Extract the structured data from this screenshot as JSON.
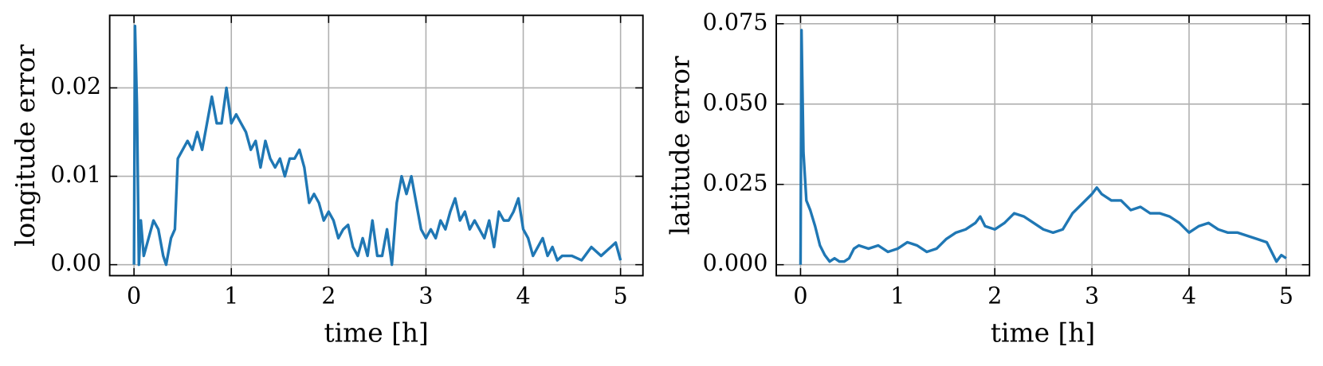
{
  "chart_data": [
    {
      "type": "line",
      "xlabel": "time [h]",
      "ylabel": "longitude error",
      "xlim": [
        -0.25,
        5.23
      ],
      "ylim": [
        -0.00124,
        0.0282
      ],
      "xticks": [
        0,
        1,
        2,
        3,
        4,
        5
      ],
      "yticks": [
        {
          "value": 0,
          "label": "0.00"
        },
        {
          "value": 0.01,
          "label": "0.01"
        },
        {
          "value": 0.02,
          "label": "0.02"
        }
      ],
      "grid": true,
      "x": [
        0,
        0.01,
        0.03,
        0.05,
        0.07,
        0.1,
        0.15,
        0.2,
        0.25,
        0.3,
        0.33,
        0.38,
        0.42,
        0.45,
        0.5,
        0.55,
        0.6,
        0.65,
        0.7,
        0.75,
        0.8,
        0.85,
        0.9,
        0.95,
        1.0,
        1.05,
        1.1,
        1.15,
        1.2,
        1.25,
        1.3,
        1.35,
        1.4,
        1.45,
        1.5,
        1.55,
        1.6,
        1.65,
        1.7,
        1.75,
        1.8,
        1.85,
        1.9,
        1.95,
        2.0,
        2.05,
        2.1,
        2.15,
        2.2,
        2.25,
        2.3,
        2.35,
        2.4,
        2.45,
        2.5,
        2.55,
        2.6,
        2.65,
        2.7,
        2.75,
        2.8,
        2.85,
        2.9,
        2.95,
        3.0,
        3.05,
        3.1,
        3.15,
        3.2,
        3.25,
        3.3,
        3.35,
        3.4,
        3.45,
        3.5,
        3.55,
        3.6,
        3.65,
        3.7,
        3.75,
        3.8,
        3.85,
        3.9,
        3.95,
        4.0,
        4.05,
        4.1,
        4.15,
        4.2,
        4.25,
        4.3,
        4.35,
        4.4,
        4.5,
        4.6,
        4.7,
        4.8,
        4.9,
        4.95,
        5.0
      ],
      "series": [
        {
          "color": "#1f77b4",
          "values": [
            0,
            0.027,
            0.018,
            0.0,
            0.005,
            0.001,
            0.003,
            0.005,
            0.004,
            0.001,
            0.0,
            0.003,
            0.004,
            0.012,
            0.013,
            0.014,
            0.013,
            0.015,
            0.013,
            0.016,
            0.019,
            0.016,
            0.016,
            0.02,
            0.016,
            0.017,
            0.016,
            0.015,
            0.013,
            0.014,
            0.011,
            0.014,
            0.012,
            0.011,
            0.012,
            0.01,
            0.012,
            0.012,
            0.013,
            0.011,
            0.007,
            0.008,
            0.007,
            0.005,
            0.006,
            0.005,
            0.003,
            0.004,
            0.0045,
            0.002,
            0.001,
            0.003,
            0.001,
            0.005,
            0.001,
            0.001,
            0.004,
            0.0,
            0.007,
            0.01,
            0.008,
            0.01,
            0.007,
            0.004,
            0.003,
            0.004,
            0.003,
            0.005,
            0.004,
            0.006,
            0.0075,
            0.005,
            0.006,
            0.004,
            0.005,
            0.004,
            0.003,
            0.005,
            0.002,
            0.006,
            0.005,
            0.005,
            0.006,
            0.0075,
            0.004,
            0.003,
            0.001,
            0.002,
            0.003,
            0.001,
            0.002,
            0.0005,
            0.001,
            0.001,
            0.0005,
            0.002,
            0.001,
            0.002,
            0.0025,
            0.0005
          ]
        }
      ]
    },
    {
      "type": "line",
      "xlabel": "time [h]",
      "ylabel": "latitude error",
      "xlim": [
        -0.25,
        5.24
      ],
      "ylim": [
        -0.0034,
        0.0776
      ],
      "xticks": [
        0,
        1,
        2,
        3,
        4,
        5
      ],
      "yticks": [
        {
          "value": 0,
          "label": "0.000"
        },
        {
          "value": 0.025,
          "label": "0.025"
        },
        {
          "value": 0.05,
          "label": "0.050"
        },
        {
          "value": 0.075,
          "label": "0.075"
        }
      ],
      "grid": true,
      "x": [
        0,
        0.01,
        0.03,
        0.06,
        0.1,
        0.15,
        0.2,
        0.25,
        0.3,
        0.35,
        0.4,
        0.45,
        0.5,
        0.55,
        0.6,
        0.7,
        0.8,
        0.9,
        1.0,
        1.1,
        1.2,
        1.3,
        1.4,
        1.5,
        1.6,
        1.7,
        1.8,
        1.85,
        1.9,
        2.0,
        2.1,
        2.2,
        2.3,
        2.4,
        2.5,
        2.6,
        2.7,
        2.8,
        2.9,
        3.0,
        3.05,
        3.1,
        3.2,
        3.3,
        3.4,
        3.5,
        3.6,
        3.7,
        3.8,
        3.9,
        4.0,
        4.1,
        4.2,
        4.3,
        4.4,
        4.5,
        4.6,
        4.7,
        4.8,
        4.85,
        4.9,
        4.95,
        5.0
      ],
      "series": [
        {
          "color": "#1f77b4",
          "values": [
            0,
            0.073,
            0.035,
            0.02,
            0.017,
            0.012,
            0.006,
            0.003,
            0.001,
            0.002,
            0.001,
            0.001,
            0.002,
            0.005,
            0.006,
            0.005,
            0.006,
            0.004,
            0.005,
            0.007,
            0.006,
            0.004,
            0.005,
            0.008,
            0.01,
            0.011,
            0.013,
            0.015,
            0.012,
            0.011,
            0.013,
            0.016,
            0.015,
            0.013,
            0.011,
            0.01,
            0.011,
            0.016,
            0.019,
            0.022,
            0.024,
            0.022,
            0.02,
            0.02,
            0.017,
            0.018,
            0.016,
            0.016,
            0.015,
            0.013,
            0.01,
            0.012,
            0.013,
            0.011,
            0.01,
            0.01,
            0.009,
            0.008,
            0.007,
            0.004,
            0.001,
            0.003,
            0.002
          ]
        }
      ]
    }
  ]
}
